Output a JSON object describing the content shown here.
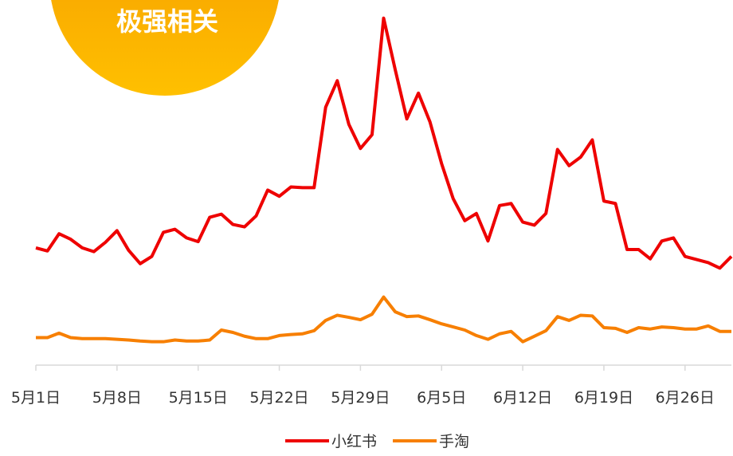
{
  "chart_data": {
    "type": "line",
    "title": "极强相关",
    "categories": [
      "5月1日",
      null,
      null,
      null,
      null,
      null,
      null,
      "5月8日",
      null,
      null,
      null,
      null,
      null,
      null,
      "5月15日",
      null,
      null,
      null,
      null,
      null,
      null,
      "5月22日",
      null,
      null,
      null,
      null,
      null,
      null,
      "5月29日",
      null,
      null,
      null,
      null,
      null,
      null,
      "6月5日",
      null,
      null,
      null,
      null,
      null,
      null,
      "6月12日",
      null,
      null,
      null,
      null,
      null,
      null,
      "6月19日",
      null,
      null,
      null,
      null,
      null,
      null,
      "6月26日",
      null,
      null,
      null,
      null
    ],
    "series": [
      {
        "name": "小红书",
        "color": "#ee0000",
        "values": [
          34.1,
          33.2,
          38.2,
          36.6,
          34.1,
          33.0,
          35.7,
          39.1,
          33.4,
          29.5,
          31.6,
          38.6,
          39.5,
          37.0,
          35.9,
          43.0,
          43.9,
          40.9,
          40.2,
          43.4,
          50.9,
          49.1,
          51.8,
          51.6,
          51.6,
          75.0,
          82.7,
          70.0,
          63.0,
          67.0,
          100.9,
          85.9,
          71.6,
          79.1,
          70.7,
          58.6,
          48.4,
          42.0,
          44.1,
          36.1,
          46.4,
          47.0,
          41.6,
          40.7,
          44.1,
          62.7,
          58.0,
          60.5,
          65.5,
          47.7,
          47.0,
          33.6,
          33.6,
          30.9,
          36.1,
          37.0,
          31.6,
          30.7,
          29.8,
          28.2,
          31.6
        ]
      },
      {
        "name": "手淘",
        "color": "#f77f00",
        "values": [
          8.0,
          8.0,
          9.3,
          8.0,
          7.7,
          7.7,
          7.7,
          7.5,
          7.3,
          7.0,
          6.8,
          6.8,
          7.3,
          7.0,
          7.0,
          7.3,
          10.2,
          9.5,
          8.4,
          7.7,
          7.7,
          8.6,
          8.9,
          9.1,
          10.0,
          13.0,
          14.5,
          13.9,
          13.2,
          14.8,
          19.8,
          15.5,
          14.1,
          14.3,
          13.2,
          12.0,
          11.1,
          10.2,
          8.6,
          7.5,
          9.1,
          9.8,
          6.8,
          8.4,
          10.0,
          14.1,
          13.0,
          14.5,
          14.3,
          10.9,
          10.7,
          9.5,
          10.9,
          10.5,
          11.1,
          10.9,
          10.5,
          10.5,
          11.4,
          9.8,
          9.8
        ]
      }
    ],
    "ylim": [
      0,
      102
    ],
    "grid": false,
    "legend": "bottom"
  }
}
